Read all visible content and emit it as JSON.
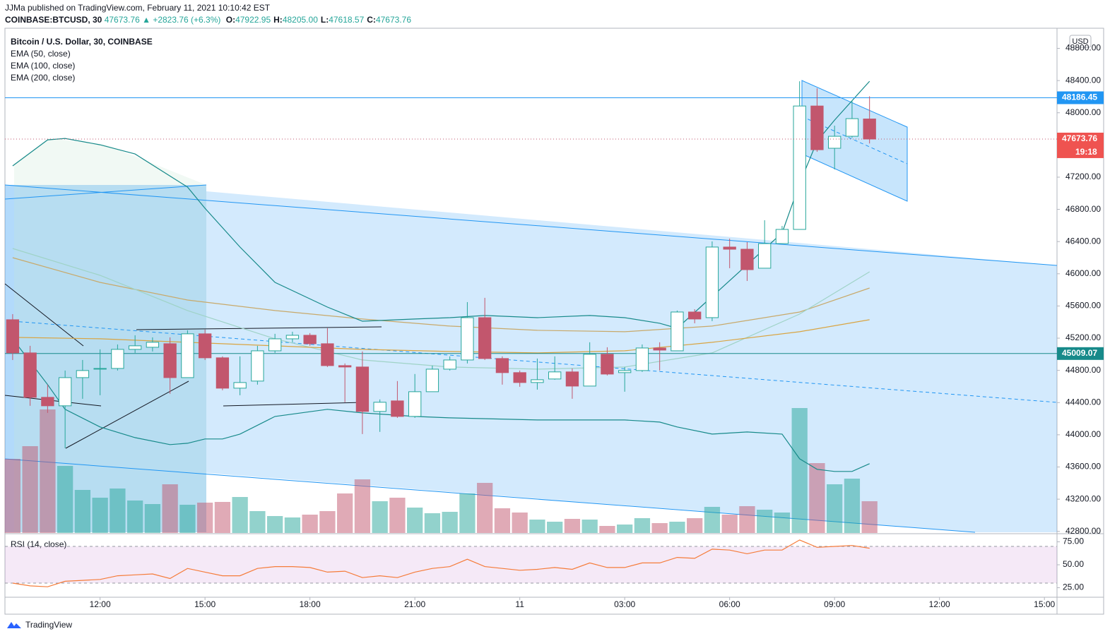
{
  "header": {
    "publisher": "JJMa published on TradingView.com, February 11, 2021 10:10:42 EST",
    "symbol": "COINBASE:BTCUSD, 30",
    "price": "47673.76",
    "change": "▲ +2823.76 (+6.3%)",
    "ohlc": [
      {
        "label": "O:",
        "value": "47922.95"
      },
      {
        "label": "H:",
        "value": "48205.00"
      },
      {
        "label": "L:",
        "value": "47618.57"
      },
      {
        "label": "C:",
        "value": "47673.76"
      }
    ]
  },
  "footer": {
    "brand": "TradingView"
  },
  "chart_data": {
    "type": "candlestick",
    "title": "Bitcoin / U.S. Dollar, 30, COINBASE",
    "currency": "USD",
    "up_color": "#26a69a",
    "down_color": "#c2566d",
    "grid": false,
    "xlim": [
      -0.44,
      59.72
    ],
    "xticks": [
      {
        "value": 5,
        "label": "12:00"
      },
      {
        "value": 11,
        "label": "15:00"
      },
      {
        "value": 17,
        "label": "18:00"
      },
      {
        "value": 23,
        "label": "21:00"
      },
      {
        "value": 29,
        "label": "11"
      },
      {
        "value": 35,
        "label": "03:00"
      },
      {
        "value": 41,
        "label": "06:00"
      },
      {
        "value": 47,
        "label": "09:00"
      },
      {
        "value": 53,
        "label": "12:00"
      },
      {
        "value": 59,
        "label": "15:00"
      }
    ],
    "ylim": [
      42780,
      49050
    ],
    "yticks": [
      {
        "value": 42800,
        "label": "42800.00"
      },
      {
        "value": 43200,
        "label": "43200.00"
      },
      {
        "value": 43600,
        "label": "43600.00"
      },
      {
        "value": 44000,
        "label": "44000.00"
      },
      {
        "value": 44400,
        "label": "44400.00"
      },
      {
        "value": 44800,
        "label": "44800.00"
      },
      {
        "value": 45200,
        "label": "45200.00"
      },
      {
        "value": 45600,
        "label": "45600.00"
      },
      {
        "value": 46000,
        "label": "46000.00"
      },
      {
        "value": 46400,
        "label": "46400.00"
      },
      {
        "value": 46800,
        "label": "46800.00"
      },
      {
        "value": 47200,
        "label": "47200.00"
      },
      {
        "value": 47600,
        "label": "47600.00"
      },
      {
        "value": 48000,
        "label": "48000.00"
      },
      {
        "value": 48400,
        "label": "48400.00"
      },
      {
        "value": 48800,
        "label": "48800.00"
      }
    ],
    "open": [
      45429,
      45017,
      44465,
      44360,
      44710,
      44815,
      44824,
      45061,
      45087,
      45131,
      44710,
      45254,
      44956,
      44579,
      44667,
      45043,
      45192,
      45236,
      45131,
      44859,
      44842,
      44290,
      44421,
      44228,
      44535,
      44815,
      44929,
      45455,
      44947,
      44772,
      44649,
      44693,
      44781,
      44605,
      45000,
      44772,
      44798,
      45078,
      45043,
      45525,
      45455,
      46332,
      46305,
      46069,
      46375,
      46551,
      48084,
      47559,
      47708,
      47922.95
    ],
    "high": [
      45499,
      45105,
      44623,
      44798,
      44929,
      45061,
      45122,
      45236,
      45210,
      45210,
      45298,
      45307,
      44974,
      44974,
      45105,
      45254,
      45280,
      45263,
      45324,
      44886,
      45035,
      44439,
      44667,
      44755,
      44859,
      44974,
      45648,
      45701,
      44974,
      44798,
      44947,
      44974,
      44824,
      45149,
      45087,
      44842,
      45122,
      45149,
      45543,
      45560,
      46402,
      46437,
      46393,
      46665,
      46594,
      48391,
      48304,
      47840,
      48155,
      48205.0
    ],
    "low": [
      44929,
      44360,
      44272,
      43834,
      44447,
      44491,
      44798,
      45017,
      45035,
      44509,
      44710,
      44929,
      44553,
      44491,
      44623,
      45017,
      45149,
      45105,
      44842,
      44404,
      44009,
      44036,
      44210,
      44210,
      44535,
      44798,
      44886,
      44929,
      44623,
      44596,
      44561,
      44684,
      44447,
      44605,
      44737,
      44535,
      44781,
      44798,
      45043,
      45385,
      45412,
      46069,
      45911,
      46069,
      46375,
      46551,
      47515,
      47296,
      47690,
      47618.57
    ],
    "close": [
      45017,
      44465,
      44360,
      44710,
      44798,
      44824,
      45061,
      45105,
      45149,
      44710,
      45254,
      44956,
      44579,
      44649,
      45043,
      45192,
      45236,
      45131,
      44859,
      44842,
      44290,
      44404,
      44228,
      44535,
      44815,
      44929,
      45455,
      44947,
      44772,
      44649,
      44684,
      44781,
      44605,
      45000,
      44754,
      44798,
      45078,
      45052,
      45525,
      45438,
      46332,
      46305,
      46051,
      46375,
      46551,
      48084,
      47541,
      47708,
      47927,
      47673.76
    ],
    "series": [
      {
        "name": "EMA (50, close)",
        "color": "#c8a96a",
        "x": [
          0,
          5,
          10,
          15,
          20,
          25,
          30,
          35,
          40,
          45,
          49
        ],
        "values": [
          46200,
          45893,
          45674,
          45543,
          45438,
          45350,
          45298,
          45280,
          45350,
          45525,
          45823
        ]
      },
      {
        "name": "EMA (100, close)",
        "color": "#9fd3c7",
        "x": [
          0,
          5,
          10,
          15,
          20,
          25,
          30,
          35,
          40,
          45,
          49
        ],
        "values": [
          46314,
          45981,
          45543,
          45192,
          44929,
          44842,
          44815,
          44842,
          45017,
          45499,
          46025
        ]
      },
      {
        "name": "EMA (200, close)",
        "color": "#d9a441",
        "x": [
          0,
          5,
          10,
          15,
          20,
          25,
          30,
          35,
          40,
          45,
          49
        ],
        "values": [
          45210,
          45192,
          45149,
          45105,
          45061,
          45035,
          45017,
          45043,
          45149,
          45280,
          45429
        ]
      }
    ],
    "bands": {
      "color": "#178a8a",
      "upper": {
        "x": [
          0,
          2,
          3,
          5,
          7,
          10,
          11,
          13,
          15,
          18,
          20,
          23,
          25,
          27,
          30,
          33,
          35,
          37,
          38,
          40,
          42,
          44,
          45,
          46,
          47,
          49
        ],
        "values": [
          47340,
          47664,
          47681,
          47602,
          47488,
          47077,
          46814,
          46332,
          45893,
          45586,
          45411,
          45438,
          45455,
          45482,
          45455,
          45482,
          45455,
          45385,
          45324,
          45718,
          46112,
          46507,
          47120,
          47646,
          47909,
          48391
        ]
      },
      "lower": {
        "x": [
          0,
          2,
          3,
          5,
          7,
          9,
          10,
          11,
          12,
          13,
          15,
          18,
          20,
          23,
          25,
          30,
          35,
          37,
          38,
          40,
          42,
          44,
          45,
          46,
          47,
          48,
          49
        ],
        "values": [
          45192,
          44623,
          44316,
          44097,
          43965,
          43878,
          43895,
          43948,
          43948,
          44009,
          44228,
          44316,
          44272,
          44228,
          44210,
          44184,
          44184,
          44158,
          44097,
          44009,
          44035,
          44009,
          43702,
          43571,
          43545,
          43545,
          43641
        ]
      }
    },
    "volume": {
      "ylim": [
        0,
        250
      ],
      "values": [
        105,
        123,
        175,
        95,
        61,
        50,
        63,
        46,
        41,
        69,
        40,
        43,
        44,
        51,
        31,
        24,
        22,
        26,
        31,
        56,
        76,
        45,
        50,
        36,
        28,
        30,
        56,
        71,
        35,
        29,
        19,
        16,
        20,
        19,
        10,
        12,
        21,
        14,
        16,
        21,
        37,
        26,
        38,
        33,
        29,
        177,
        99,
        69,
        77,
        45
      ]
    },
    "hlines": [
      {
        "value": 48186.45,
        "color": "#2196f3"
      },
      {
        "value": 45009.07,
        "color": "#178a8a"
      }
    ],
    "last_price": 47673.76,
    "countdown": "19:18",
    "rsi": {
      "title": "RSI (14, close)",
      "color": "#f57c3a",
      "ylim": [
        15.4,
        83.1
      ],
      "yticks": [
        {
          "value": 75,
          "label": "75.00"
        },
        {
          "value": 50,
          "label": "50.00"
        },
        {
          "value": 25,
          "label": "25.00"
        }
      ],
      "levels": [
        70,
        30
      ],
      "values": [
        30,
        27,
        26,
        32,
        33,
        34,
        38,
        39,
        40,
        35,
        46,
        42,
        38,
        38,
        46,
        48,
        48,
        47,
        42,
        43,
        36,
        38,
        36,
        42,
        46,
        48,
        56,
        48,
        46,
        44,
        45,
        47,
        45,
        52,
        47,
        47,
        52,
        52,
        58,
        57,
        67,
        66,
        62,
        66,
        66,
        77,
        69,
        70,
        71,
        68
      ]
    }
  }
}
